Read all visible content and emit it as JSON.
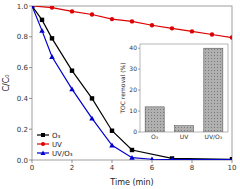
{
  "chart_data": [
    {
      "type": "line",
      "xlabel": "Time (min)",
      "ylabel": "C/C₀",
      "xlim": [
        0,
        10
      ],
      "ylim": [
        0,
        1.0
      ],
      "xticks": [
        0,
        2,
        4,
        6,
        8,
        10
      ],
      "yticks": [
        {
          "value": 0.0,
          "label": "0.0"
        },
        0.2,
        0.4,
        0.6,
        0.8,
        {
          "value": 1.0,
          "label": "1.0"
        }
      ],
      "grid": false,
      "legend": "lower left",
      "series": [
        {
          "name": "O₃",
          "color": "#000000",
          "marker": "square",
          "x": [
            0,
            0.5,
            1,
            2,
            3,
            4,
            5,
            7,
            10
          ],
          "values": [
            1.0,
            0.91,
            0.79,
            0.58,
            0.4,
            0.19,
            0.065,
            0.01,
            0.005
          ]
        },
        {
          "name": "UV",
          "color": "#dd0000",
          "marker": "circle",
          "x": [
            0,
            1,
            2,
            3,
            4,
            5,
            6,
            7,
            8,
            9,
            10
          ],
          "values": [
            1.0,
            0.99,
            0.965,
            0.945,
            0.915,
            0.9,
            0.875,
            0.855,
            0.835,
            0.815,
            0.795
          ]
        },
        {
          "name": "UV/O₃",
          "color": "#0000cc",
          "marker": "triangle",
          "x": [
            0,
            0.5,
            1,
            2,
            3,
            4,
            5,
            6,
            7,
            10
          ],
          "values": [
            1.0,
            0.84,
            0.67,
            0.46,
            0.27,
            0.095,
            0.015,
            0.005,
            0.003,
            0.002
          ]
        }
      ]
    },
    {
      "type": "bar",
      "ylabel": "TOC removal (%)",
      "categories": [
        "O₃",
        "UV",
        "UV/O₃"
      ],
      "values": [
        12,
        3,
        40
      ],
      "color": "#b0b0b0",
      "ylim": [
        0,
        42
      ],
      "yticks": [
        0,
        10,
        20,
        30,
        40
      ],
      "grid": false
    }
  ]
}
